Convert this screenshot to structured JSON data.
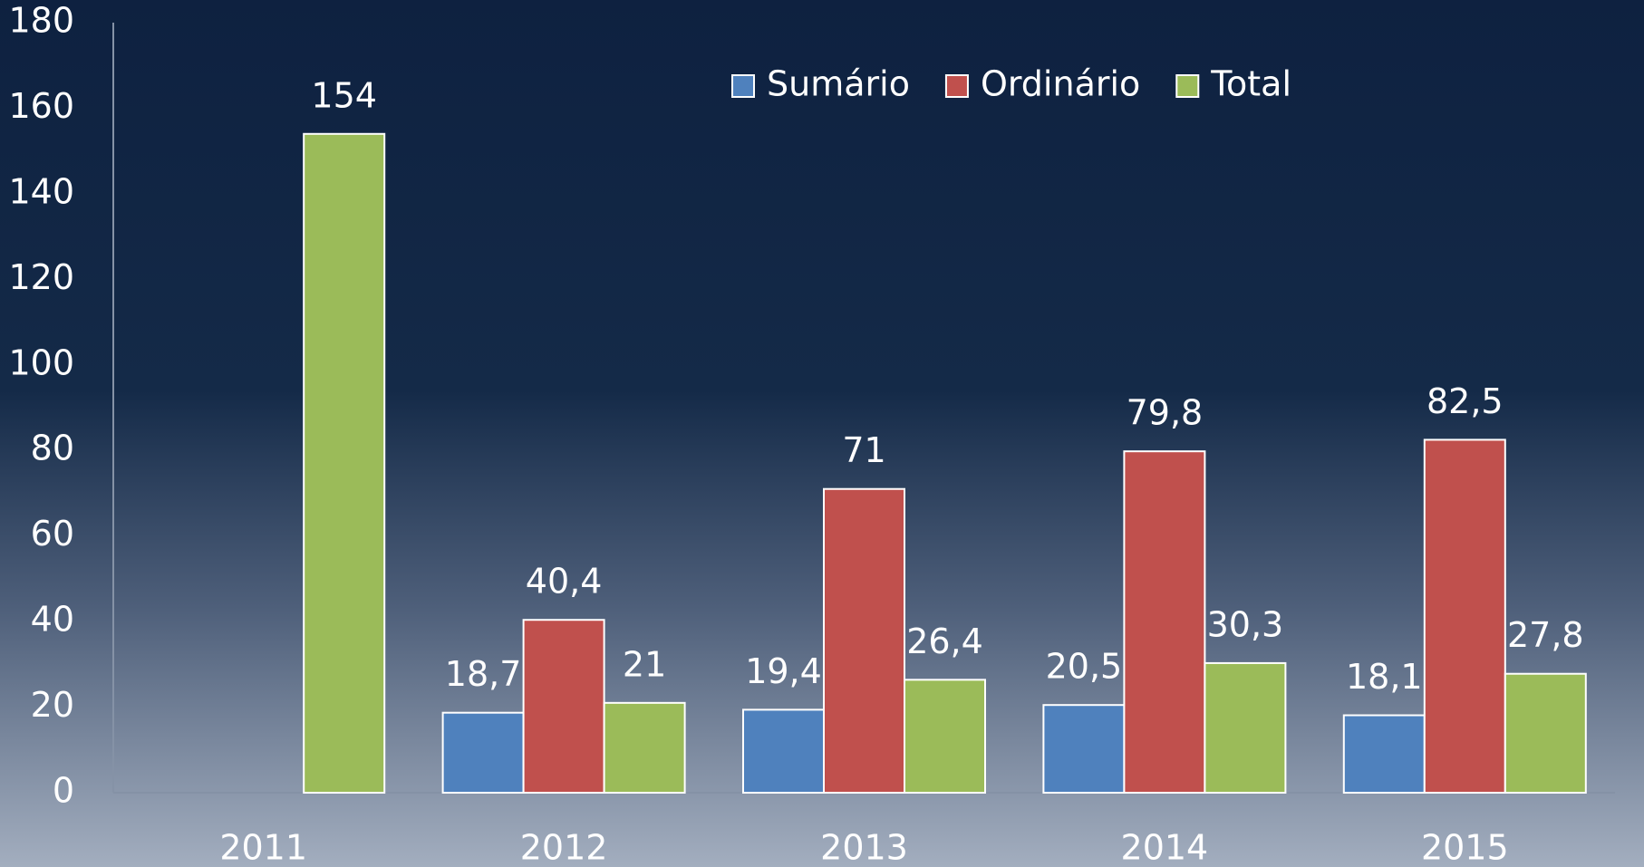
{
  "chart_data": {
    "type": "bar",
    "categories": [
      "2011",
      "2012",
      "2013",
      "2014",
      "2015"
    ],
    "series": [
      {
        "name": "Sumário",
        "color": "#4f81bd",
        "values": [
          null,
          18.7,
          19.4,
          20.5,
          18.1
        ],
        "value_labels": [
          null,
          "18,7",
          "19,4",
          "20,5",
          "18,1"
        ]
      },
      {
        "name": "Ordinário",
        "color": "#c0504d",
        "values": [
          null,
          40.4,
          71,
          79.8,
          82.5
        ],
        "value_labels": [
          null,
          "40,4",
          "71",
          "79,8",
          "82,5"
        ]
      },
      {
        "name": "Total",
        "color": "#9bbb59",
        "values": [
          154,
          21,
          26.4,
          30.3,
          27.8
        ],
        "value_labels": [
          "154",
          "21",
          "26,4",
          "30,3",
          "27,8"
        ]
      }
    ],
    "ylim": [
      0,
      180
    ],
    "yticks": [
      0,
      20,
      40,
      60,
      80,
      100,
      120,
      140,
      160,
      180
    ],
    "legend": "top",
    "grid": false
  }
}
